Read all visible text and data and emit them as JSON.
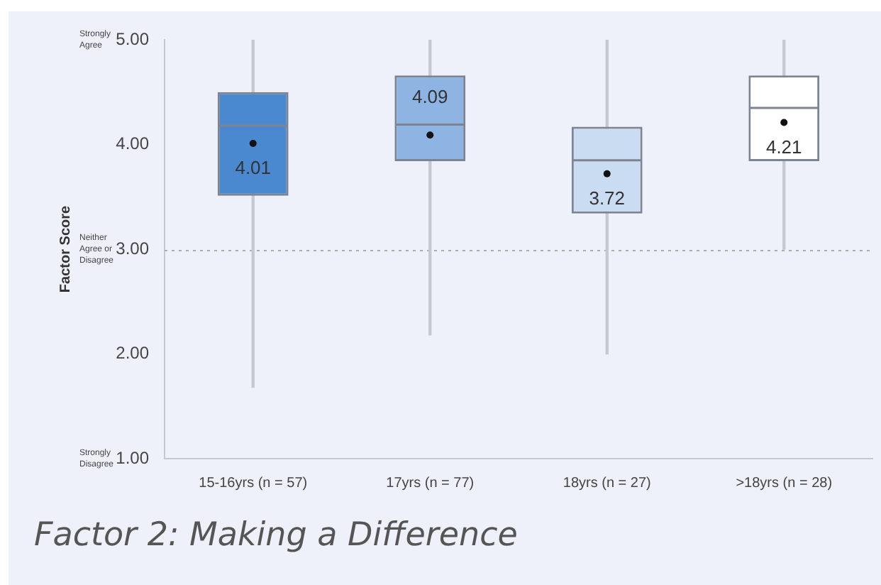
{
  "chart_data": {
    "type": "box",
    "title": "Factor 2: Making a Difference",
    "ylabel": "Factor Score",
    "categories": [
      "15-16yrs (n = 57)",
      "17yrs (n = 77)",
      "18yrs (n = 27)",
      ">18yrs (n = 28)"
    ],
    "colors": [
      "#4a89d0",
      "#8db4e2",
      "#c9dcf2",
      "#ffffff"
    ],
    "boxes": [
      {
        "low": 1.68,
        "q1": 3.51,
        "median": 4.18,
        "q3": 4.5,
        "high": 5.0,
        "mean": 4.01
      },
      {
        "low": 2.18,
        "q1": 3.84,
        "median": 4.19,
        "q3": 4.66,
        "high": 5.0,
        "mean": 4.09
      },
      {
        "low": 2.0,
        "q1": 3.34,
        "median": 3.85,
        "q3": 4.17,
        "high": 5.0,
        "mean": 3.72
      },
      {
        "low": 3.0,
        "q1": 3.84,
        "median": 4.35,
        "q3": 4.66,
        "high": 5.0,
        "mean": 4.21
      }
    ],
    "ylim": [
      1,
      5
    ],
    "yticks": [
      {
        "value": 1,
        "label": "1.00"
      },
      {
        "value": 2,
        "label": "2.00"
      },
      {
        "value": 3,
        "label": "3.00"
      },
      {
        "value": 4,
        "label": "4.00"
      },
      {
        "value": 5,
        "label": "5.00"
      }
    ],
    "ref_lines": [
      {
        "axis": "y",
        "value": 3,
        "color": "#a9adb5",
        "line_style": "dotted"
      }
    ],
    "annotations": [
      "Strongly Agree",
      "Neither Agree or Disagree",
      "Strongly Disagree",
      {
        "text": "4.01",
        "x": "15-16yrs (n = 57)",
        "y": 4.01
      },
      {
        "text": "4.09",
        "x": "17yrs (n = 77)",
        "y": 4.09
      },
      {
        "text": "3.72",
        "x": "18yrs (n = 27)",
        "y": 3.72
      },
      {
        "text": "4.21",
        "x": ">18yrs (n = 28)",
        "y": 4.21
      }
    ]
  }
}
